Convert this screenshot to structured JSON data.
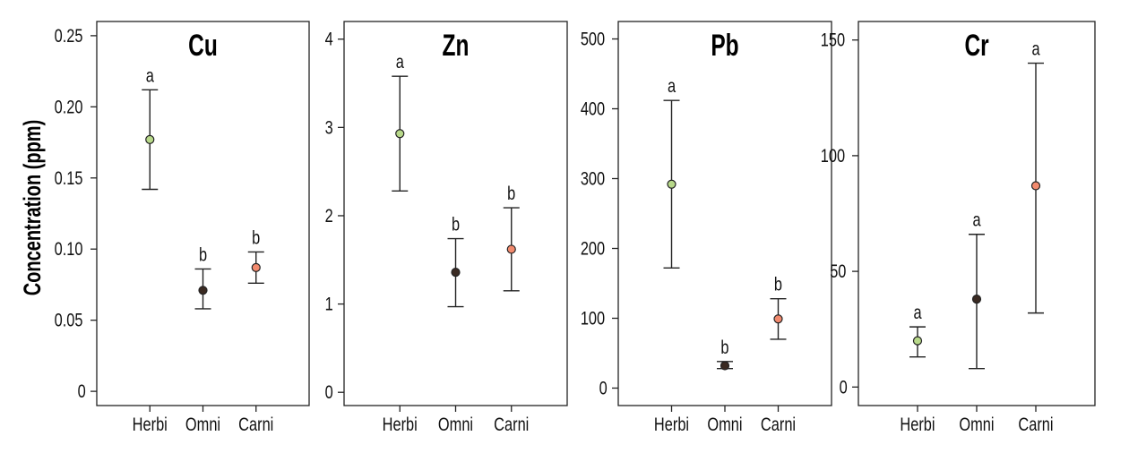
{
  "y_axis_label": "Concentration (ppm)",
  "chart_data": [
    {
      "type": "scatter",
      "title": "Cu",
      "categories": [
        "Herbi",
        "Omni",
        "Carni"
      ],
      "ylim": [
        -0.01,
        0.26
      ],
      "yticks": [
        0,
        0.05,
        0.1,
        0.15,
        0.2,
        0.25
      ],
      "ytick_labels": [
        "0",
        "0.05",
        "0.10",
        "0.15",
        "0.20",
        "0.25"
      ],
      "grid": false,
      "points": [
        {
          "category": "Herbi",
          "value": 0.177,
          "lower": 0.142,
          "upper": 0.212,
          "letter": "a",
          "color": "#b8d98a"
        },
        {
          "category": "Omni",
          "value": 0.071,
          "lower": 0.058,
          "upper": 0.086,
          "letter": "b",
          "color": "#3a2a22"
        },
        {
          "category": "Carni",
          "value": 0.087,
          "lower": 0.076,
          "upper": 0.098,
          "letter": "b",
          "color": "#f28a6e"
        }
      ]
    },
    {
      "type": "scatter",
      "title": "Zn",
      "categories": [
        "Herbi",
        "Omni",
        "Carni"
      ],
      "ylim": [
        -0.15,
        4.2
      ],
      "yticks": [
        0,
        1,
        2,
        3,
        4
      ],
      "ytick_labels": [
        "0",
        "1",
        "2",
        "3",
        "4"
      ],
      "grid": false,
      "points": [
        {
          "category": "Herbi",
          "value": 2.93,
          "lower": 2.28,
          "upper": 3.58,
          "letter": "a",
          "color": "#b8d98a"
        },
        {
          "category": "Omni",
          "value": 1.36,
          "lower": 0.97,
          "upper": 1.74,
          "letter": "b",
          "color": "#3a2a22"
        },
        {
          "category": "Carni",
          "value": 1.62,
          "lower": 1.15,
          "upper": 2.09,
          "letter": "b",
          "color": "#f28a6e"
        }
      ]
    },
    {
      "type": "scatter",
      "title": "Pb",
      "categories": [
        "Herbi",
        "Omni",
        "Carni"
      ],
      "ylim": [
        -25,
        525
      ],
      "yticks": [
        0,
        100,
        200,
        300,
        400,
        500
      ],
      "ytick_labels": [
        "0",
        "100",
        "200",
        "300",
        "400",
        "500"
      ],
      "grid": false,
      "points": [
        {
          "category": "Herbi",
          "value": 292,
          "lower": 172,
          "upper": 412,
          "letter": "a",
          "color": "#b8d98a"
        },
        {
          "category": "Omni",
          "value": 32,
          "lower": 28,
          "upper": 38,
          "letter": "b",
          "color": "#3a2a22"
        },
        {
          "category": "Carni",
          "value": 99,
          "lower": 70,
          "upper": 128,
          "letter": "b",
          "color": "#f28a6e"
        }
      ]
    },
    {
      "type": "scatter",
      "title": "Cr",
      "categories": [
        "Herbi",
        "Omni",
        "Carni"
      ],
      "ylim": [
        -8,
        158
      ],
      "yticks": [
        0,
        50,
        100,
        150
      ],
      "ytick_labels": [
        "0",
        "50",
        "100",
        "150"
      ],
      "grid": false,
      "points": [
        {
          "category": "Herbi",
          "value": 20,
          "lower": 13,
          "upper": 26,
          "letter": "a",
          "color": "#b8d98a"
        },
        {
          "category": "Omni",
          "value": 38,
          "lower": 8,
          "upper": 66,
          "letter": "a",
          "color": "#3a2a22"
        },
        {
          "category": "Carni",
          "value": 87,
          "lower": 32,
          "upper": 140,
          "letter": "a",
          "color": "#f28a6e"
        }
      ]
    }
  ]
}
